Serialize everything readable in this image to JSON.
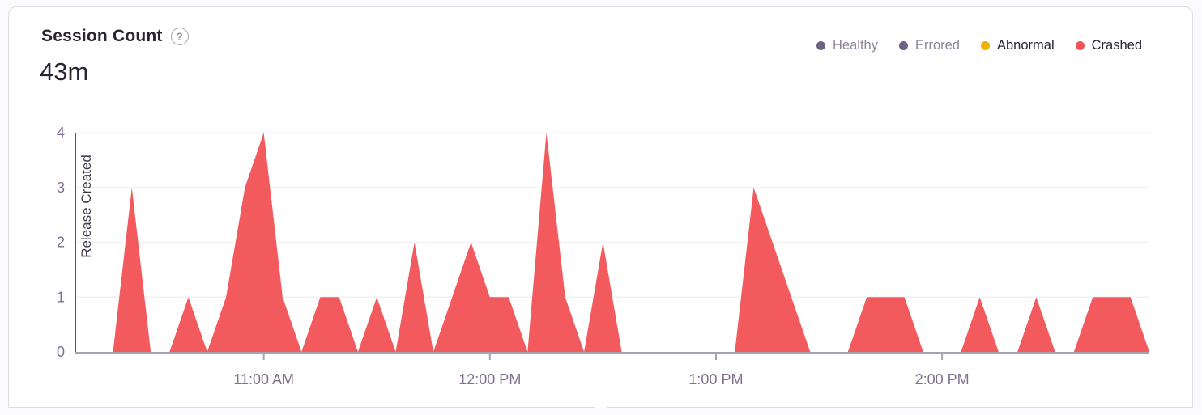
{
  "card": {
    "title": "Session Count",
    "help_glyph": "?",
    "total": "43m",
    "background": "#ffffff",
    "border_color": "#e0dce5"
  },
  "legend": {
    "position": "top-right",
    "items": [
      {
        "label": "Healthy",
        "dot_color": "#6d6284",
        "text_color": "#8d8499",
        "selected": false
      },
      {
        "label": "Errored",
        "dot_color": "#6d6284",
        "text_color": "#8d8499",
        "selected": false
      },
      {
        "label": "Abnormal",
        "dot_color": "#f0b202",
        "text_color": "#2b2233",
        "selected": true
      },
      {
        "label": "Crashed",
        "dot_color": "#f1555b",
        "text_color": "#2b2233",
        "selected": true
      }
    ]
  },
  "chart_data": {
    "type": "area",
    "title": "Session Count",
    "x": [
      "10:10 AM",
      "10:15 AM",
      "10:20 AM",
      "10:25 AM",
      "10:30 AM",
      "10:35 AM",
      "10:40 AM",
      "10:45 AM",
      "10:50 AM",
      "10:55 AM",
      "11:00 AM",
      "11:05 AM",
      "11:10 AM",
      "11:15 AM",
      "11:20 AM",
      "11:25 AM",
      "11:30 AM",
      "11:35 AM",
      "11:40 AM",
      "11:45 AM",
      "11:50 AM",
      "11:55 AM",
      "12:00 PM",
      "12:05 PM",
      "12:10 PM",
      "12:15 PM",
      "12:20 PM",
      "12:25 PM",
      "12:30 PM",
      "12:35 PM",
      "12:40 PM",
      "12:45 PM",
      "12:50 PM",
      "12:55 PM",
      "1:00 PM",
      "1:05 PM",
      "1:10 PM",
      "1:15 PM",
      "1:20 PM",
      "1:25 PM",
      "1:30 PM",
      "1:35 PM",
      "1:40 PM",
      "1:45 PM",
      "1:50 PM",
      "1:55 PM",
      "2:00 PM",
      "2:05 PM",
      "2:10 PM",
      "2:15 PM",
      "2:20 PM",
      "2:25 PM",
      "2:30 PM",
      "2:35 PM",
      "2:40 PM",
      "2:45 PM",
      "2:50 PM",
      "2:55 PM"
    ],
    "series": [
      {
        "name": "Crashed",
        "color": "#f25a5e",
        "values": [
          0,
          0,
          0,
          3,
          0,
          0,
          1,
          0,
          1,
          3,
          4,
          1,
          0,
          1,
          1,
          0,
          1,
          0,
          2,
          0,
          1,
          2,
          1,
          1,
          0,
          4,
          1,
          0,
          2,
          0,
          0,
          0,
          0,
          0,
          0,
          0,
          3,
          2,
          1,
          0,
          0,
          0,
          1,
          1,
          1,
          0,
          0,
          0,
          1,
          0,
          0,
          1,
          0,
          0,
          1,
          1,
          1,
          0
        ]
      }
    ],
    "x_tick_labels": [
      "11:00 AM",
      "12:00 PM",
      "1:00 PM",
      "2:00 PM"
    ],
    "y_ticks": [
      0,
      1,
      2,
      3,
      4
    ],
    "ylim": [
      0,
      4
    ],
    "grid": true,
    "legend_position": "top-right",
    "annotations": [
      {
        "type": "vertical-line",
        "label": "Release Created",
        "x": "10:10 AM"
      }
    ],
    "axis_color": "#a9a2b2",
    "label_color": "#80708f",
    "grid_color": "#f2f0f5",
    "release_line_color": "#57515f",
    "release_label_color": "#3f3847"
  }
}
